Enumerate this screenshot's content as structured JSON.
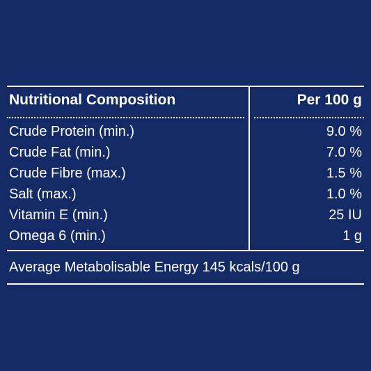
{
  "table": {
    "header": {
      "nutrient": "Nutritional Composition",
      "amount": "Per 100 g"
    },
    "rows": [
      {
        "label": "Crude Protein (min.)",
        "value": "9.0 %"
      },
      {
        "label": "Crude Fat (min.)",
        "value": "7.0 %"
      },
      {
        "label": "Crude Fibre (max.)",
        "value": "1.5 %"
      },
      {
        "label": "Salt (max.)",
        "value": "1.0 %"
      },
      {
        "label": "Vitamin E (min.)",
        "value": "25 IU"
      },
      {
        "label": "Omega 6 (min.)",
        "value": "1 g"
      }
    ],
    "footer": "Average Metabolisable Energy 145 kcals/100 g"
  },
  "colors": {
    "background": "#142a66",
    "text": "#ffffff",
    "rule": "#ffffff"
  }
}
